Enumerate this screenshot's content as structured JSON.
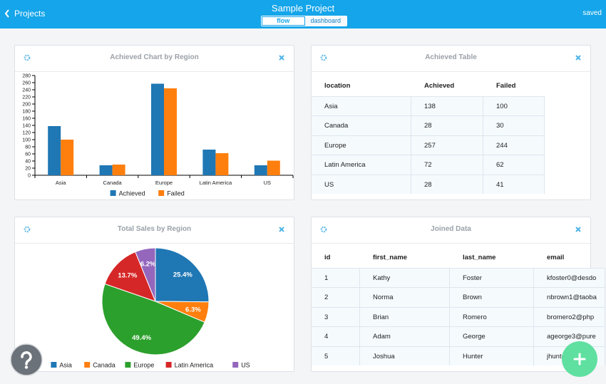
{
  "header": {
    "back": "Projects",
    "title": "Sample Project",
    "tabs": [
      "flow",
      "dashboard"
    ],
    "status": "saved"
  },
  "chart_data": [
    {
      "type": "bar",
      "title": "Achieved Chart by Region",
      "categories": [
        "Asia",
        "Canada",
        "Europe",
        "Latin America",
        "US"
      ],
      "series": [
        {
          "name": "Achieved",
          "color": "#1f77b4",
          "values": [
            138,
            28,
            257,
            72,
            28
          ]
        },
        {
          "name": "Failed",
          "color": "#ff7f0e",
          "values": [
            100,
            30,
            244,
            62,
            41
          ]
        }
      ],
      "ylim": [
        0,
        280
      ],
      "yticks": [
        0,
        20,
        40,
        60,
        80,
        100,
        120,
        140,
        160,
        180,
        200,
        220,
        240,
        260,
        280
      ],
      "legend": "bottom"
    },
    {
      "type": "pie",
      "title": "Total Sales by Region",
      "categories": [
        "Asia",
        "Canada",
        "Europe",
        "Latin America",
        "US"
      ],
      "values": [
        25.4,
        6.3,
        49.4,
        13.7,
        6.2
      ],
      "value_labels": [
        "25.4%",
        "6.3%",
        "49.4%",
        "13.7%",
        "6.2%"
      ],
      "colors": [
        "#1f77b4",
        "#ff7f0e",
        "#2ca02c",
        "#d62728",
        "#9467bd"
      ],
      "legend": "bottom"
    }
  ],
  "tables": [
    {
      "title": "Achieved Table",
      "columns": [
        "location",
        "Achieved",
        "Failed"
      ],
      "rows": [
        [
          "Asia",
          138,
          100
        ],
        [
          "Canada",
          28,
          30
        ],
        [
          "Europe",
          257,
          244
        ],
        [
          "Latin America",
          72,
          62
        ],
        [
          "US",
          28,
          41
        ]
      ]
    },
    {
      "title": "Joined Data",
      "columns": [
        "id",
        "first_name",
        "last_name",
        "email"
      ],
      "rows": [
        [
          1,
          "Kathy",
          "Foster",
          "kfoster0@desdo"
        ],
        [
          2,
          "Norma",
          "Brown",
          "nbrown1@taoba"
        ],
        [
          3,
          "Brian",
          "Romero",
          "bromero2@php"
        ],
        [
          4,
          "Adam",
          "George",
          "ageorge3@pure"
        ],
        [
          5,
          "Joshua",
          "Hunter",
          "jhunter"
        ]
      ]
    }
  ]
}
